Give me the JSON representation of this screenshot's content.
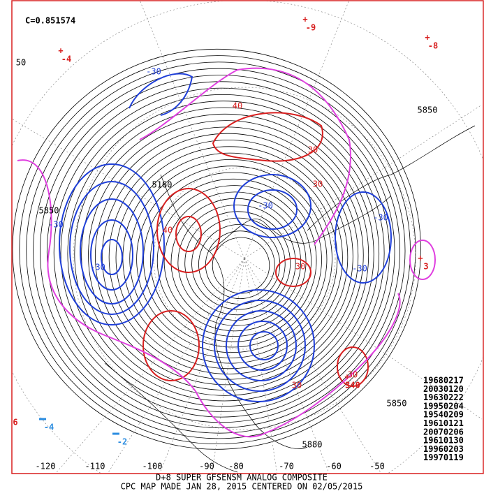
{
  "map": {
    "correlation": "C=0.851574",
    "analog_dates": [
      "19680217",
      "20030120",
      "19630222",
      "19950204",
      "19540209",
      "19610121",
      "20070206",
      "19610130",
      "19960203",
      "19970119"
    ],
    "footer": [
      "D+8 SUPER GFSENSM ANALOG COMPOSITE",
      "CPC MAP MADE JAN 28, 2015 CENTERED ON 02/05/2015"
    ],
    "longitude_labels": [
      "-120",
      "-110",
      "-100",
      "-90",
      "-80",
      "-70",
      "-60",
      "-50"
    ],
    "height_labels": [
      "50",
      "5850",
      "5160",
      "5850",
      "5850",
      "5880"
    ],
    "positive_anomaly_labels": [
      "40",
      "30",
      "30",
      "40",
      "30",
      "30",
      "30"
    ],
    "negative_anomaly_labels": [
      "-30",
      "-30",
      "-30",
      "-30",
      "-30",
      "-30"
    ],
    "high_markers": [
      "-4",
      "-9",
      "-8",
      "340",
      "3",
      "6"
    ],
    "low_markers": [
      "-4",
      "-2"
    ]
  }
}
